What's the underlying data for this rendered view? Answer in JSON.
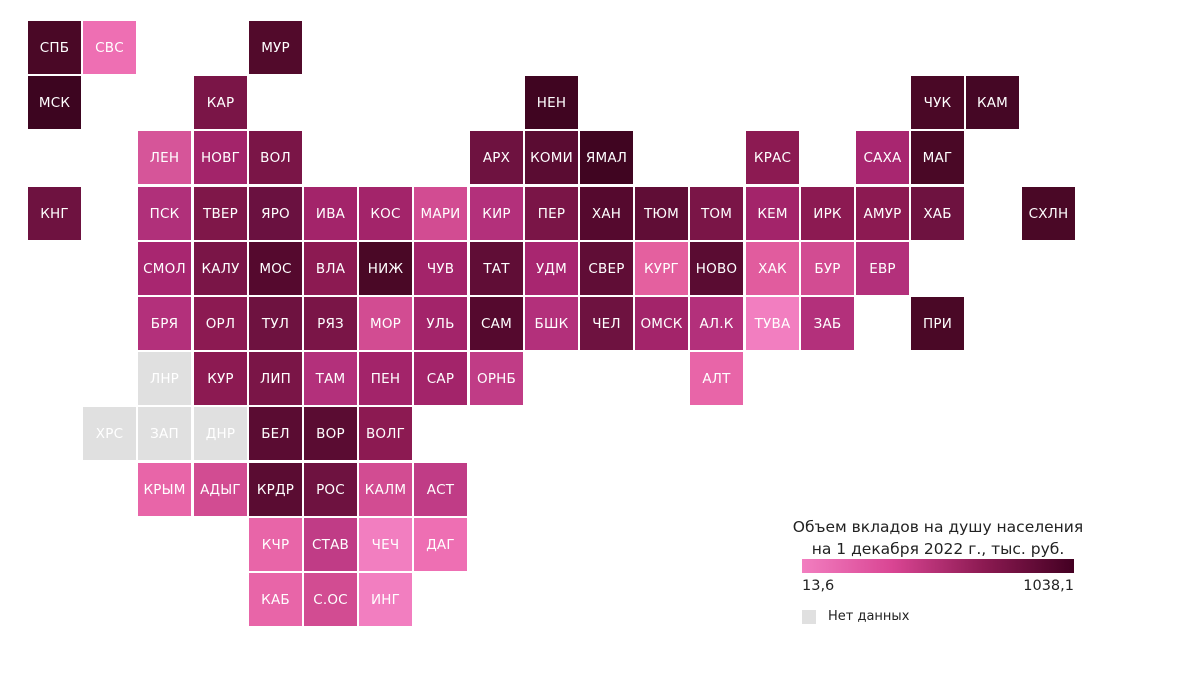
{
  "map": {
    "regions": [
      {
        "label": "СПБ",
        "row": 0,
        "col": 0,
        "color": "#4a0826"
      },
      {
        "label": "СВС",
        "row": 0,
        "col": 1,
        "color": "#ee6fb3"
      },
      {
        "label": "МУР",
        "row": 0,
        "col": 4,
        "color": "#520a2b"
      },
      {
        "label": "МСК",
        "row": 1,
        "col": 0,
        "color": "#3d0520"
      },
      {
        "label": "КАР",
        "row": 1,
        "col": 3,
        "color": "#7a1547"
      },
      {
        "label": "НЕН",
        "row": 1,
        "col": 9,
        "color": "#400521"
      },
      {
        "label": "ЧУК",
        "row": 1,
        "col": 16,
        "color": "#4a0826"
      },
      {
        "label": "КАМ",
        "row": 1,
        "col": 17,
        "color": "#450725"
      },
      {
        "label": "ЛЕН",
        "row": 2,
        "col": 2,
        "color": "#d65599"
      },
      {
        "label": "НОВГ",
        "row": 2,
        "col": 3,
        "color": "#a3246a"
      },
      {
        "label": "ВОЛ",
        "row": 2,
        "col": 4,
        "color": "#7a1547"
      },
      {
        "label": "АРХ",
        "row": 2,
        "col": 8,
        "color": "#6e1240"
      },
      {
        "label": "КОМИ",
        "row": 2,
        "col": 9,
        "color": "#5a0c32"
      },
      {
        "label": "ЯМАЛ",
        "row": 2,
        "col": 10,
        "color": "#400521"
      },
      {
        "label": "КРАС",
        "row": 2,
        "col": 13,
        "color": "#8c1a52"
      },
      {
        "label": "САХА",
        "row": 2,
        "col": 15,
        "color": "#a82670"
      },
      {
        "label": "МАГ",
        "row": 2,
        "col": 16,
        "color": "#4a0826"
      },
      {
        "label": "КНГ",
        "row": 3,
        "col": 0,
        "color": "#6e1240"
      },
      {
        "label": "ПСК",
        "row": 3,
        "col": 2,
        "color": "#b0307a"
      },
      {
        "label": "ТВЕР",
        "row": 3,
        "col": 3,
        "color": "#7f1749"
      },
      {
        "label": "ЯРО",
        "row": 3,
        "col": 4,
        "color": "#6a1140"
      },
      {
        "label": "ИВА",
        "row": 3,
        "col": 5,
        "color": "#a3246a"
      },
      {
        "label": "КОС",
        "row": 3,
        "col": 6,
        "color": "#a3246a"
      },
      {
        "label": "МАРИ",
        "row": 3,
        "col": 7,
        "color": "#d24c92"
      },
      {
        "label": "КИР",
        "row": 3,
        "col": 8,
        "color": "#b3307b"
      },
      {
        "label": "ПЕР",
        "row": 3,
        "col": 9,
        "color": "#7a1547"
      },
      {
        "label": "ХАН",
        "row": 3,
        "col": 10,
        "color": "#55092e"
      },
      {
        "label": "ТЮМ",
        "row": 3,
        "col": 11,
        "color": "#600d36"
      },
      {
        "label": "ТОМ",
        "row": 3,
        "col": 12,
        "color": "#7a1547"
      },
      {
        "label": "КЕМ",
        "row": 3,
        "col": 13,
        "color": "#a3246a"
      },
      {
        "label": "ИРК",
        "row": 3,
        "col": 14,
        "color": "#8c1a52"
      },
      {
        "label": "АМУР",
        "row": 3,
        "col": 15,
        "color": "#8c1a52"
      },
      {
        "label": "ХАБ",
        "row": 3,
        "col": 16,
        "color": "#6e1240"
      },
      {
        "label": "СХЛН",
        "row": 3,
        "col": 18,
        "color": "#4a0826"
      },
      {
        "label": "СМОЛ",
        "row": 4,
        "col": 2,
        "color": "#a82670"
      },
      {
        "label": "КАЛУ",
        "row": 4,
        "col": 3,
        "color": "#7a1547"
      },
      {
        "label": "МОС",
        "row": 4,
        "col": 4,
        "color": "#55092e"
      },
      {
        "label": "ВЛА",
        "row": 4,
        "col": 5,
        "color": "#8c1a52"
      },
      {
        "label": "НИЖ",
        "row": 4,
        "col": 6,
        "color": "#4a0826"
      },
      {
        "label": "ЧУВ",
        "row": 4,
        "col": 7,
        "color": "#a3246a"
      },
      {
        "label": "ТАТ",
        "row": 4,
        "col": 8,
        "color": "#600d36"
      },
      {
        "label": "УДМ",
        "row": 4,
        "col": 9,
        "color": "#a82670"
      },
      {
        "label": "СВЕР",
        "row": 4,
        "col": 10,
        "color": "#600d36"
      },
      {
        "label": "КУРГ",
        "row": 4,
        "col": 11,
        "color": "#e4609f"
      },
      {
        "label": "НОВО",
        "row": 4,
        "col": 12,
        "color": "#5a0c32"
      },
      {
        "label": "ХАК",
        "row": 4,
        "col": 13,
        "color": "#e15c9e"
      },
      {
        "label": "БУР",
        "row": 4,
        "col": 14,
        "color": "#d24c92"
      },
      {
        "label": "ЕВР",
        "row": 4,
        "col": 15,
        "color": "#b3307b"
      },
      {
        "label": "БРЯ",
        "row": 5,
        "col": 2,
        "color": "#b3307b"
      },
      {
        "label": "ОРЛ",
        "row": 5,
        "col": 3,
        "color": "#8c1a52"
      },
      {
        "label": "ТУЛ",
        "row": 5,
        "col": 4,
        "color": "#6e1240"
      },
      {
        "label": "РЯЗ",
        "row": 5,
        "col": 5,
        "color": "#7a1547"
      },
      {
        "label": "МОР",
        "row": 5,
        "col": 6,
        "color": "#d24c92"
      },
      {
        "label": "УЛЬ",
        "row": 5,
        "col": 7,
        "color": "#a3246a"
      },
      {
        "label": "САМ",
        "row": 5,
        "col": 8,
        "color": "#55092e"
      },
      {
        "label": "БШК",
        "row": 5,
        "col": 9,
        "color": "#b3307b"
      },
      {
        "label": "ЧЕЛ",
        "row": 5,
        "col": 10,
        "color": "#6e1240"
      },
      {
        "label": "ОМСК",
        "row": 5,
        "col": 11,
        "color": "#a3246a"
      },
      {
        "label": "АЛ.К",
        "row": 5,
        "col": 12,
        "color": "#b3307b"
      },
      {
        "label": "ТУВА",
        "row": 5,
        "col": 13,
        "color": "#f27ec0"
      },
      {
        "label": "ЗАБ",
        "row": 5,
        "col": 14,
        "color": "#b3307b"
      },
      {
        "label": "ПРИ",
        "row": 5,
        "col": 16,
        "color": "#4a0826"
      },
      {
        "label": "ЛНР",
        "row": 6,
        "col": 2,
        "color": "",
        "nodata": true
      },
      {
        "label": "КУР",
        "row": 6,
        "col": 3,
        "color": "#8c1a52"
      },
      {
        "label": "ЛИП",
        "row": 6,
        "col": 4,
        "color": "#7a1547"
      },
      {
        "label": "ТАМ",
        "row": 6,
        "col": 5,
        "color": "#b3307b"
      },
      {
        "label": "ПЕН",
        "row": 6,
        "col": 6,
        "color": "#a3246a"
      },
      {
        "label": "САР",
        "row": 6,
        "col": 7,
        "color": "#a3246a"
      },
      {
        "label": "ОРНБ",
        "row": 6,
        "col": 8,
        "color": "#c03c86"
      },
      {
        "label": "АЛТ",
        "row": 6,
        "col": 12,
        "color": "#e865a8"
      },
      {
        "label": "ХРС",
        "row": 7,
        "col": 1,
        "color": "",
        "nodata": true
      },
      {
        "label": "ЗАП",
        "row": 7,
        "col": 2,
        "color": "",
        "nodata": true
      },
      {
        "label": "ДНР",
        "row": 7,
        "col": 3,
        "color": "",
        "nodata": true
      },
      {
        "label": "БЕЛ",
        "row": 7,
        "col": 4,
        "color": "#5a0c32"
      },
      {
        "label": "ВОР",
        "row": 7,
        "col": 5,
        "color": "#5a0c32"
      },
      {
        "label": "ВОЛГ",
        "row": 7,
        "col": 6,
        "color": "#8c1a52"
      },
      {
        "label": "КРЫМ",
        "row": 8,
        "col": 2,
        "color": "#e865a8"
      },
      {
        "label": "АДЫГ",
        "row": 8,
        "col": 3,
        "color": "#d24c92"
      },
      {
        "label": "КРДР",
        "row": 8,
        "col": 4,
        "color": "#5a0c32"
      },
      {
        "label": "РОС",
        "row": 8,
        "col": 5,
        "color": "#6e1240"
      },
      {
        "label": "КАЛМ",
        "row": 8,
        "col": 6,
        "color": "#d24c92"
      },
      {
        "label": "АСТ",
        "row": 8,
        "col": 7,
        "color": "#c03c86"
      },
      {
        "label": "КЧР",
        "row": 9,
        "col": 4,
        "color": "#e865a8"
      },
      {
        "label": "СТАВ",
        "row": 9,
        "col": 5,
        "color": "#c03c86"
      },
      {
        "label": "ЧЕЧ",
        "row": 9,
        "col": 6,
        "color": "#f27ec0"
      },
      {
        "label": "ДАГ",
        "row": 9,
        "col": 7,
        "color": "#ee6fb3"
      },
      {
        "label": "КАБ",
        "row": 10,
        "col": 4,
        "color": "#e865a8"
      },
      {
        "label": "С.ОС",
        "row": 10,
        "col": 5,
        "color": "#d24c92"
      },
      {
        "label": "ИНГ",
        "row": 10,
        "col": 6,
        "color": "#f27ec0"
      }
    ]
  },
  "legend": {
    "title_line1": "Объем вкладов на душу населения",
    "title_line2": "на 1 декабря 2022 г., тыс. руб.",
    "min_label": "13,6",
    "max_label": "1038,1",
    "nodata_label": "Нет данных",
    "gradient_colors": [
      "#f27ec0",
      "#d94593",
      "#8c1a52",
      "#430022"
    ],
    "nodata_color": "#e0e0e0"
  }
}
